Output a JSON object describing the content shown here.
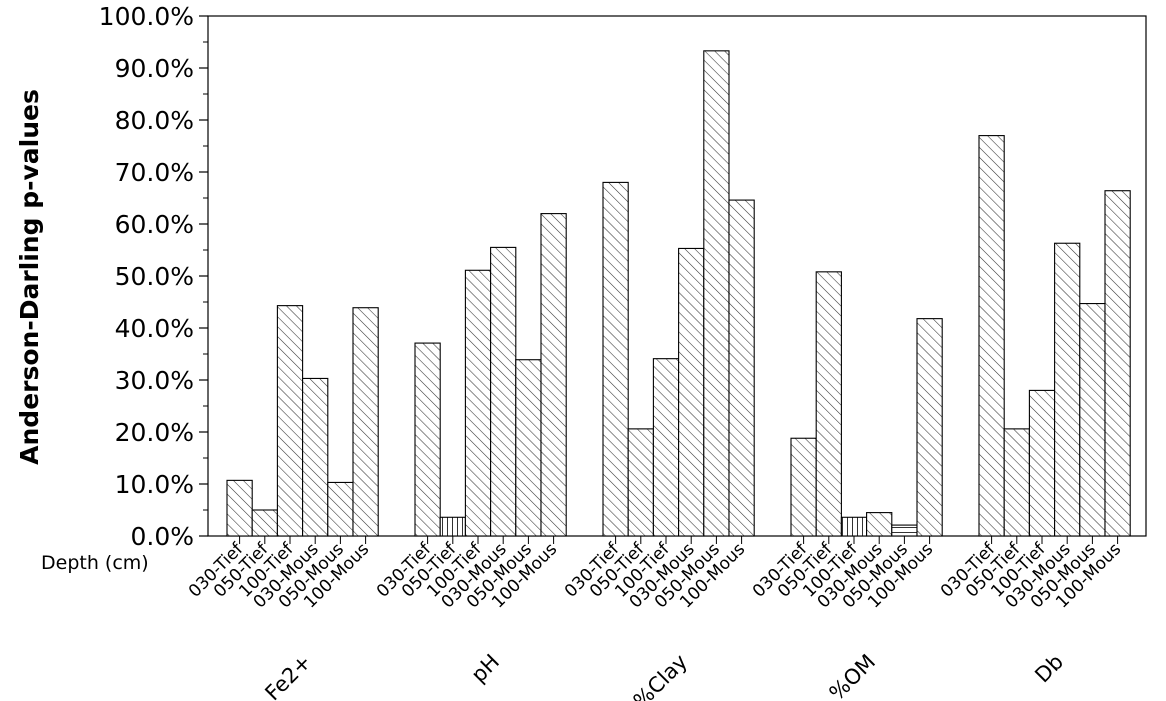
{
  "chart_data": {
    "type": "bar",
    "ylabel": "Anderson-Darling p-values",
    "xlabel": "Depth (cm)",
    "ylim": [
      0,
      100
    ],
    "yticks": [
      "0.0%",
      "10.0%",
      "20.0%",
      "30.0%",
      "40.0%",
      "50.0%",
      "60.0%",
      "70.0%",
      "80.0%",
      "90.0%",
      "100.0%"
    ],
    "subcategories": [
      "030-Tief",
      "050-Tief",
      "100-Tief",
      "030-Mous",
      "050-Mous",
      "100-Mous"
    ],
    "groups": [
      {
        "label": "Fe2+",
        "values": [
          10.7,
          5.0,
          44.3,
          30.3,
          10.3,
          43.9
        ],
        "patterns": [
          "diag",
          "diag",
          "diag",
          "diag",
          "diag",
          "diag"
        ]
      },
      {
        "label": "pH",
        "values": [
          37.1,
          3.6,
          51.1,
          55.5,
          33.9,
          62.0
        ],
        "patterns": [
          "diag",
          "vert",
          "diag",
          "diag",
          "diag",
          "diag"
        ]
      },
      {
        "label": "%Clay",
        "values": [
          68.0,
          20.6,
          34.1,
          55.3,
          93.3,
          64.6
        ],
        "patterns": [
          "diag",
          "diag",
          "diag",
          "diag",
          "diag",
          "diag"
        ]
      },
      {
        "label": "%OM",
        "values": [
          18.8,
          50.8,
          3.6,
          4.5,
          2.1,
          41.8
        ],
        "patterns": [
          "diag",
          "diag",
          "vert",
          "diag",
          "horiz",
          "diag"
        ]
      },
      {
        "label": "Db",
        "values": [
          77.0,
          20.6,
          28.0,
          56.3,
          44.7,
          66.4
        ],
        "patterns": [
          "diag",
          "diag",
          "diag",
          "diag",
          "diag",
          "diag"
        ]
      }
    ],
    "grid": false,
    "legend": "none"
  }
}
